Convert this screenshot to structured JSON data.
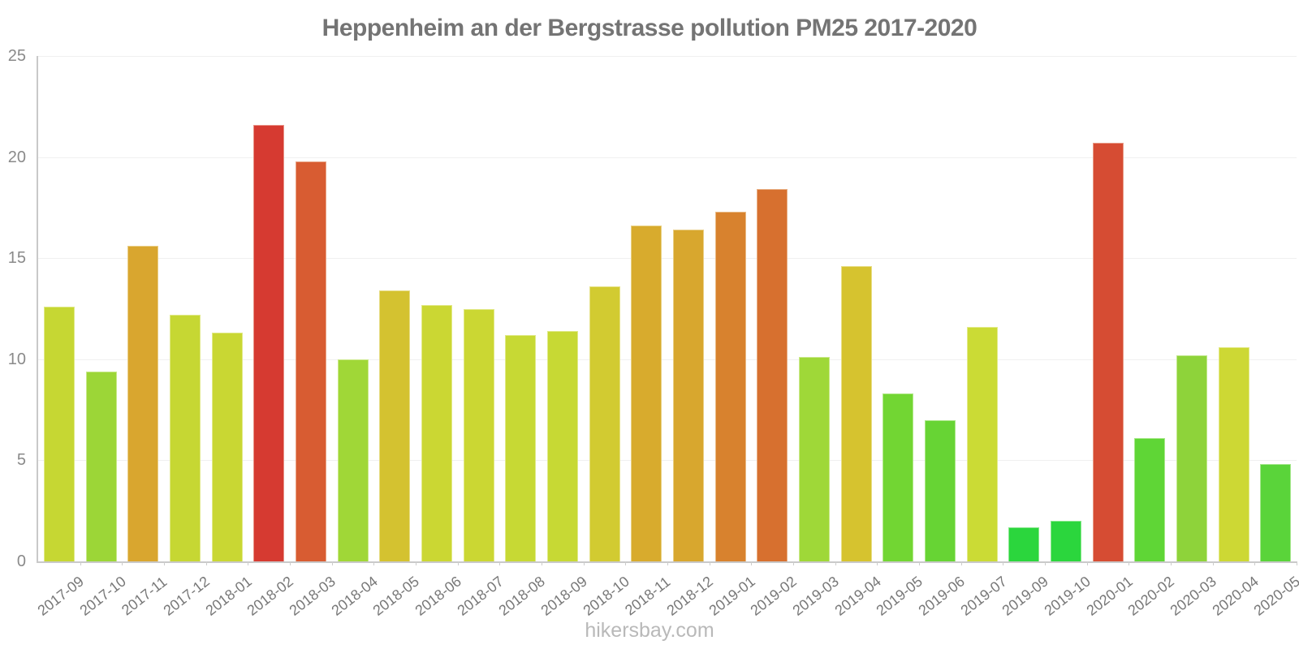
{
  "footer": "hikersbay.com",
  "chart_data": {
    "type": "bar",
    "title": "Heppenheim an der Bergstrasse pollution PM25 2017-2020",
    "xlabel": "",
    "ylabel": "",
    "ylim": [
      0,
      25
    ],
    "yticks": [
      0,
      5,
      10,
      15,
      20,
      25
    ],
    "grid": true,
    "legend": false,
    "categories": [
      "2017-09",
      "2017-10",
      "2017-11",
      "2017-12",
      "2018-01",
      "2018-02",
      "2018-03",
      "2018-04",
      "2018-05",
      "2018-06",
      "2018-07",
      "2018-08",
      "2018-09",
      "2018-10",
      "2018-11",
      "2018-12",
      "2019-01",
      "2019-02",
      "2019-03",
      "2019-04",
      "2019-05",
      "2019-06",
      "2019-07",
      "2019-09",
      "2019-10",
      "2020-01",
      "2020-02",
      "2020-03",
      "2020-04",
      "2020-05"
    ],
    "values": [
      12.6,
      9.4,
      15.6,
      12.2,
      11.3,
      21.6,
      19.8,
      10.0,
      13.4,
      12.7,
      12.5,
      11.2,
      11.4,
      13.6,
      16.6,
      16.4,
      17.3,
      18.4,
      10.1,
      14.6,
      8.3,
      7.0,
      11.6,
      1.7,
      2.0,
      20.7,
      6.1,
      10.2,
      10.6,
      4.8
    ],
    "colors": [
      "#c6d733",
      "#9cd637",
      "#d9a62f",
      "#c6d733",
      "#c9d733",
      "#d63a31",
      "#d85c32",
      "#a0d737",
      "#d4c230",
      "#cbd733",
      "#cbd733",
      "#c7d934",
      "#c7d934",
      "#d2cb31",
      "#d8ab2d",
      "#d8a72e",
      "#d8822e",
      "#d7702f",
      "#9fd838",
      "#d6c32f",
      "#72d633",
      "#67d434",
      "#cbdb35",
      "#2bd63d",
      "#2bd63d",
      "#d64c33",
      "#5fd636",
      "#8ed33a",
      "#cdd834",
      "#5ad43a"
    ]
  }
}
